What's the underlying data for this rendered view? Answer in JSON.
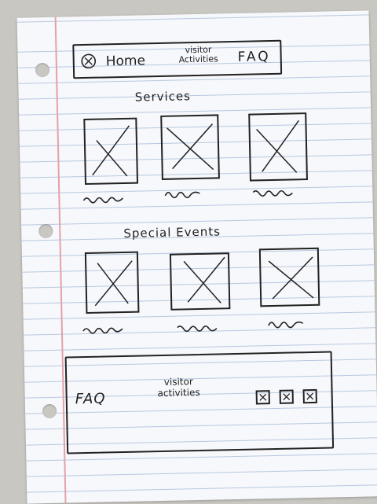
{
  "header": {
    "home_label": "Home",
    "activities_label_line1": "visitor",
    "activities_label_line2": "Activities",
    "faq_label": "FAQ"
  },
  "sections": {
    "services_title": "Services",
    "events_title": "Special Events"
  },
  "footer": {
    "faq_label": "FAQ",
    "activities_label_line1": "visitor",
    "activities_label_line2": "activities"
  },
  "icons": {
    "logo": "circle-x-icon",
    "placeholder": "image-placeholder-x",
    "social": "box-x-icon"
  },
  "colors": {
    "ink": "#222222",
    "paper": "#f7f8fb",
    "rule_line": "#b7c8e0",
    "margin_line": "#e4a1a8"
  }
}
